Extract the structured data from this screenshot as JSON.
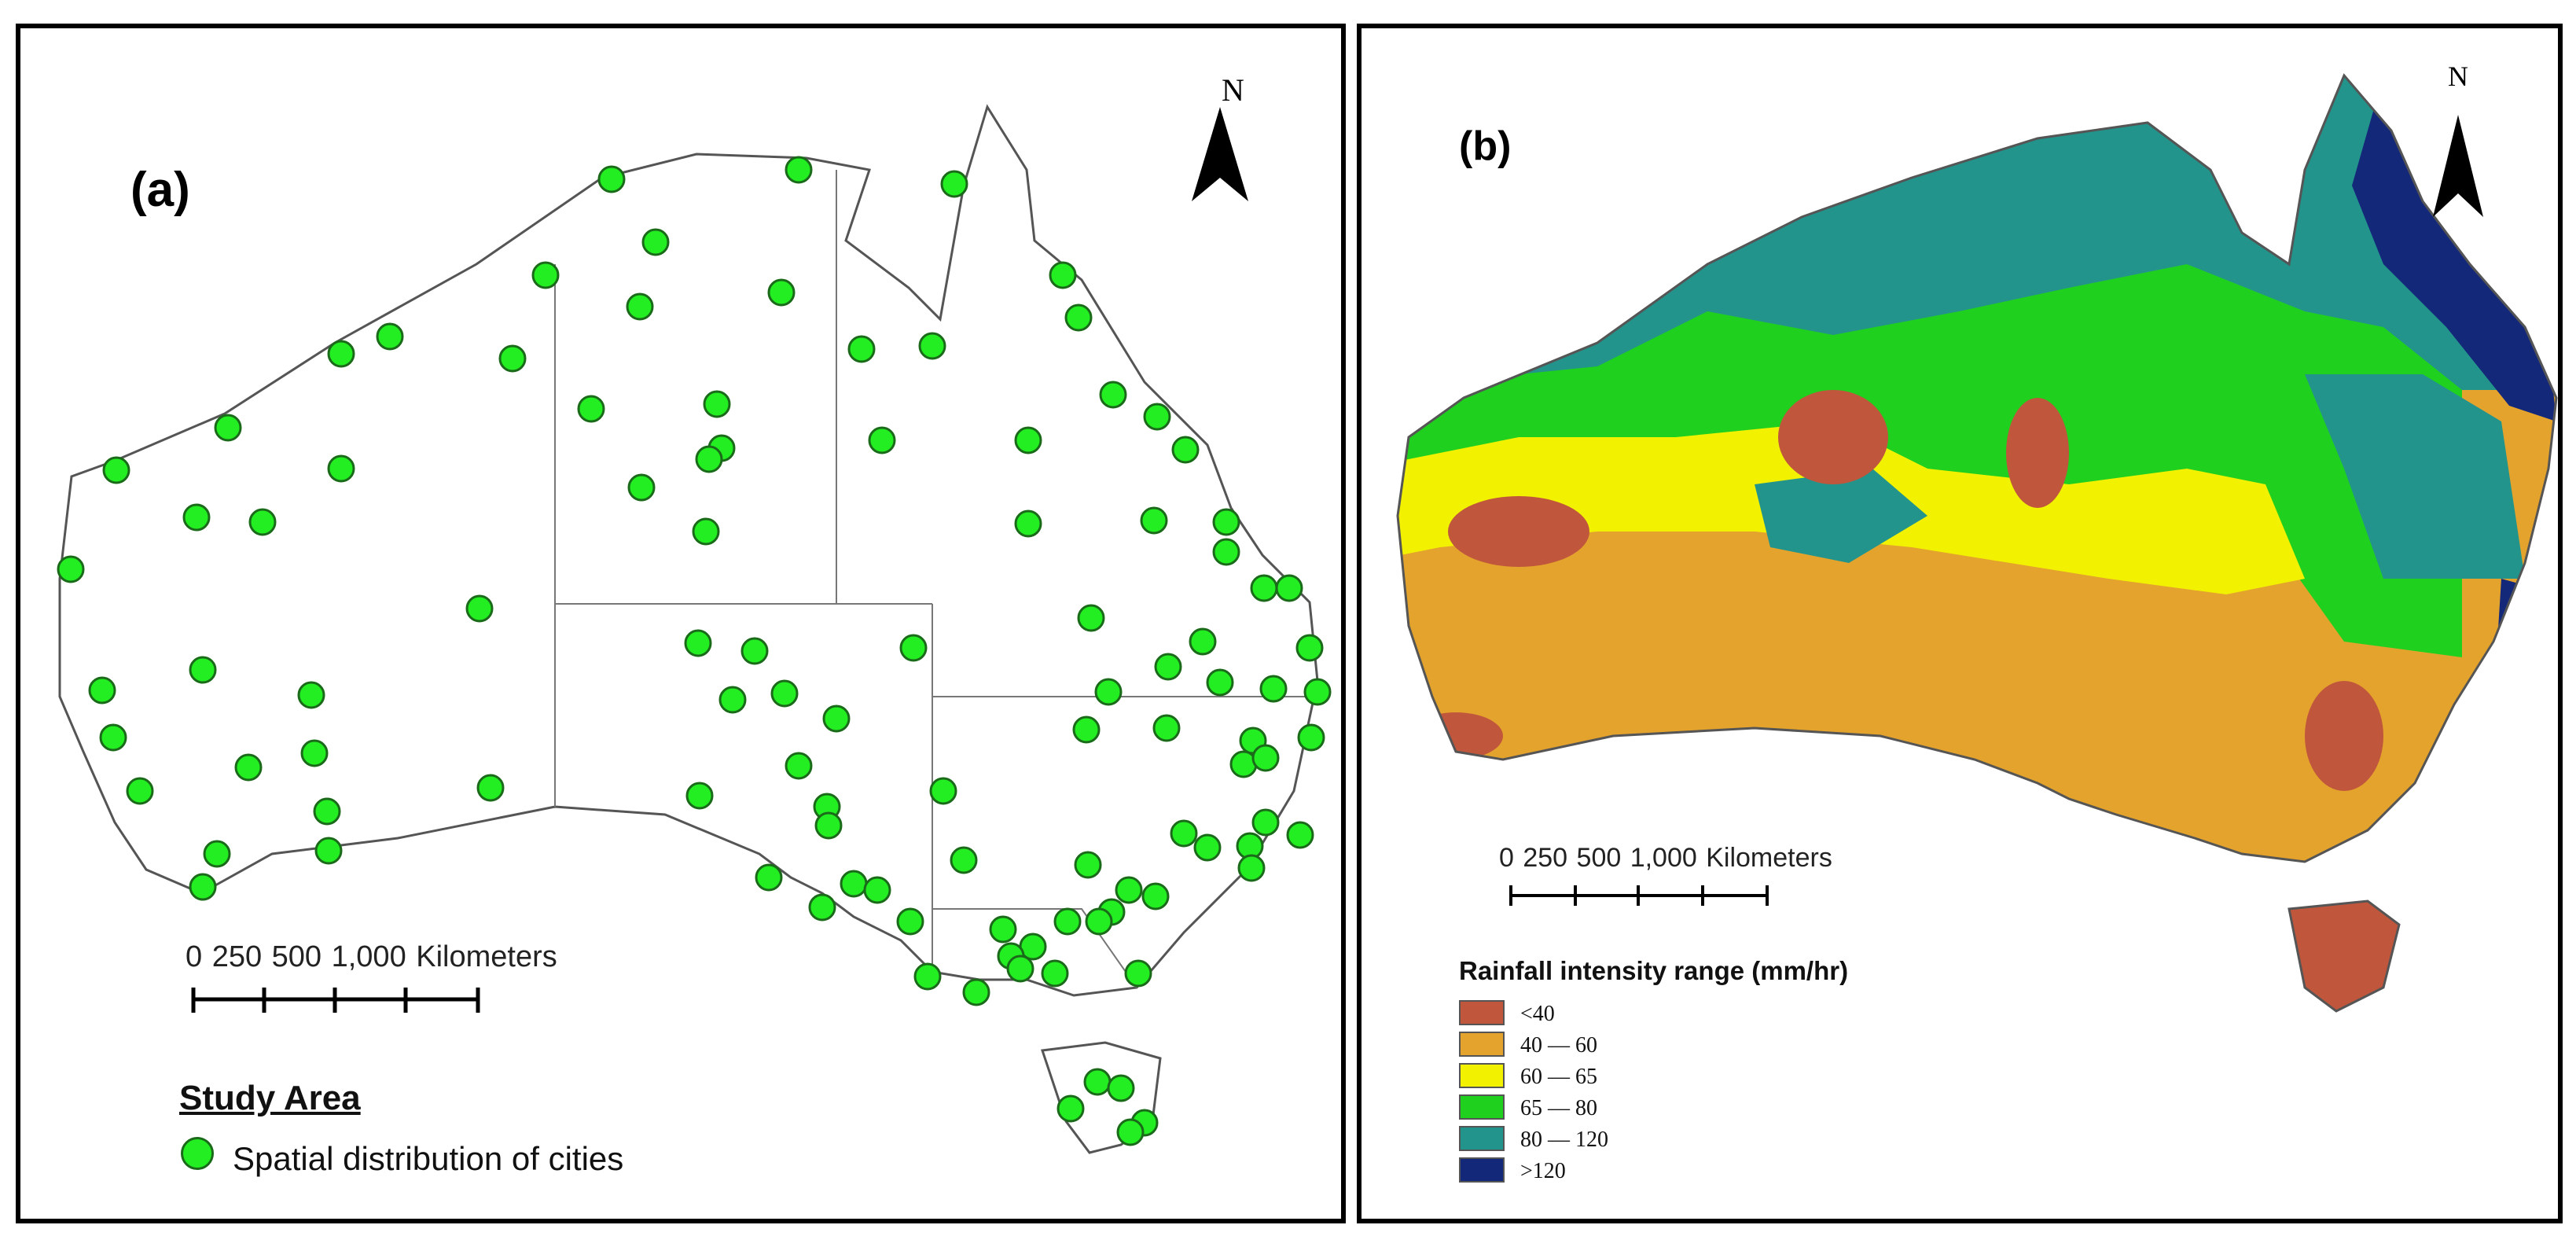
{
  "panel_a": {
    "label": "(a)",
    "north": "N",
    "scale_text": "0    250   500          1,000 Kilometers",
    "legend_title": "Study Area",
    "legend_item": "Spatial distribution of cities",
    "dot_color": "#22ee22"
  },
  "panel_b": {
    "label": "(b)",
    "north": "N",
    "scale_text": "0    250   500          1,000 Kilometers",
    "legend_title": "Rainfall intensity range (mm/hr)",
    "legend_items": [
      {
        "label": "<40",
        "color": "#c0563c"
      },
      {
        "label": "40 — 60",
        "color": "#e4a32c"
      },
      {
        "label": "60 — 65",
        "color": "#f2f200"
      },
      {
        "label": "65 — 80",
        "color": "#1fd01f"
      },
      {
        "label": "80 — 120",
        "color": "#22948c"
      },
      {
        "label": ">120",
        "color": "#14287a"
      }
    ]
  },
  "colors": {
    "coast": "#555555",
    "land": "#ffffff",
    "border": "#000000"
  }
}
